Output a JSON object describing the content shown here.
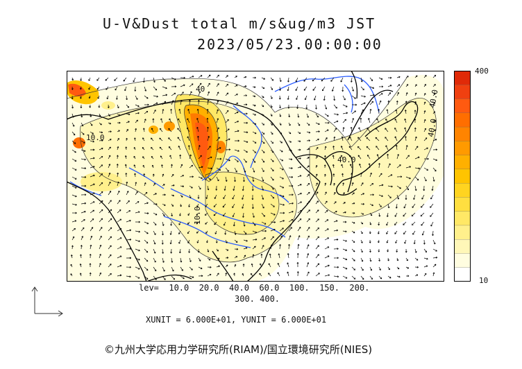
{
  "title": "U-V&Dust total m/s&ug/m3 JST",
  "datetime": "2023/05/23.00:00:00",
  "colorbar": {
    "max_label": "400",
    "min_label": "10",
    "colors": [
      "#ffffff",
      "#fffde0",
      "#fff7b8",
      "#fff08c",
      "#ffe866",
      "#ffdf40",
      "#ffd420",
      "#ffc400",
      "#ffb000",
      "#ff9a00",
      "#ff8400",
      "#ff6e00",
      "#ff5a10",
      "#f04010",
      "#e02a08"
    ]
  },
  "levels_line1": "lev=  10.0  20.0  40.0  60.0  100.  150.  200.",
  "levels_line2": "300.  400.",
  "units": "XUNIT = 6.000E+01, YUNIT = 6.000E+01",
  "credit": "©九州大学応用力学研究所(RIAM)/国立環境研究所(NIES)",
  "contour_labels": [
    "40",
    "40.0",
    "40.0",
    "10.0",
    "10.0",
    "40.0"
  ],
  "colors": {
    "coast": "#000000",
    "rivers": "#2a5cff",
    "contour": "#333333",
    "wind": "#000000"
  }
}
